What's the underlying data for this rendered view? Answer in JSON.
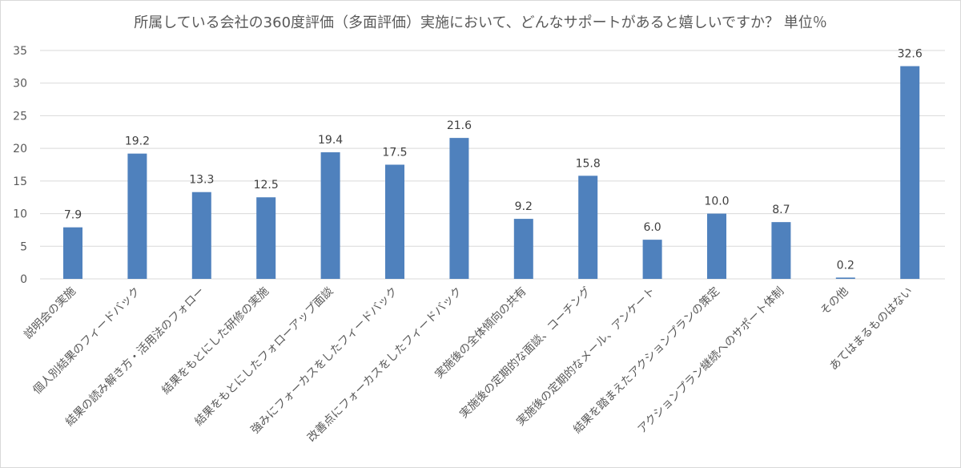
{
  "chart_data": {
    "type": "bar",
    "title": "所属している会社の360度評価（多面評価）実施において、どんなサポートがあると嬉しいですか？ 単位％",
    "xlabel": "",
    "ylabel": "",
    "ylim": [
      0,
      35
    ],
    "yticks": [
      0,
      5,
      10,
      15,
      20,
      25,
      30,
      35
    ],
    "grid": true,
    "legend": "none",
    "bar_color": "#4f81bd",
    "categories": [
      "説明会の実施",
      "個人別結果のフィードバック",
      "結果の読み解き方・活用法のフォロー",
      "結果をもとにした研修の実施",
      "結果をもとにしたフォローアップ面談",
      "強みにフォーカスをしたフィードバック",
      "改善点にフォーカスをしたフィードバック",
      "実施後の全体傾向の共有",
      "実施後の定期的な面談、コーチング",
      "実施後の定期的なメール、アンケート",
      "結果を踏まえたアクションプランの策定",
      "アクションプラン継続へのサポート体制",
      "その他",
      "あてはまるものはない"
    ],
    "values": [
      7.9,
      19.2,
      13.3,
      12.5,
      19.4,
      17.5,
      21.6,
      9.2,
      15.8,
      6.0,
      10.0,
      8.7,
      0.2,
      32.6
    ],
    "data_labels": [
      "7.9",
      "19.2",
      "13.3",
      "12.5",
      "19.4",
      "17.5",
      "21.6",
      "9.2",
      "15.8",
      "6.0",
      "10.0",
      "8.7",
      "0.2",
      "32.6"
    ]
  }
}
